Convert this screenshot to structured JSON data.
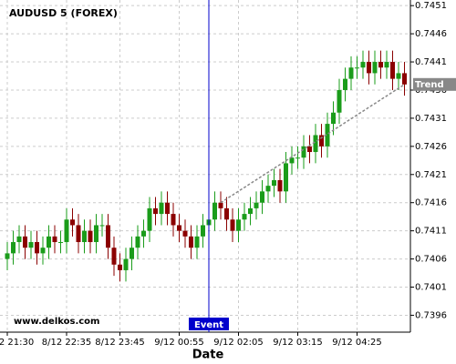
{
  "chart_data": {
    "type": "candlestick",
    "title": "AUDUSD 5 (FOREX)",
    "watermark": "www.delkos.com",
    "x_label": "Date",
    "categories": [
      "2 21:30",
      null,
      null,
      null,
      null,
      null,
      null,
      null,
      null,
      null,
      "8/12 22:35",
      null,
      null,
      null,
      null,
      null,
      null,
      null,
      null,
      "8/12 23:45",
      null,
      null,
      null,
      null,
      null,
      null,
      null,
      null,
      null,
      "9/12 00:55",
      null,
      null,
      null,
      null,
      null,
      null,
      null,
      null,
      null,
      "9/12 02:05",
      null,
      null,
      null,
      null,
      null,
      null,
      null,
      null,
      null,
      "9/12 03:15",
      null,
      null,
      null,
      null,
      null,
      null,
      null,
      null,
      null,
      "9/12 04:25",
      null,
      null,
      null,
      null,
      null,
      null,
      null,
      null
    ],
    "open": [
      0.7406,
      0.7407,
      0.7409,
      0.741,
      0.7408,
      0.7409,
      0.7407,
      0.7408,
      0.741,
      0.7409,
      0.7409,
      0.7413,
      0.7412,
      0.7409,
      0.7411,
      0.7409,
      0.7412,
      0.7412,
      0.7408,
      0.7405,
      0.7404,
      0.7406,
      0.7408,
      0.741,
      0.7411,
      0.7415,
      0.7414,
      0.7416,
      0.7414,
      0.7412,
      0.7411,
      0.741,
      0.7408,
      0.741,
      0.7412,
      0.7413,
      0.7416,
      0.7415,
      0.7413,
      0.7411,
      0.7413,
      0.7414,
      0.7415,
      0.7416,
      0.7418,
      0.7419,
      0.742,
      0.7418,
      0.7423,
      0.7424,
      0.7424,
      0.7426,
      0.7425,
      0.7428,
      0.7426,
      0.743,
      0.7432,
      0.7436,
      0.7438,
      0.744,
      0.744,
      0.7441,
      0.7439,
      0.7441,
      0.744,
      0.7441,
      0.7438,
      0.7439
    ],
    "high": [
      0.7409,
      0.7411,
      0.7412,
      0.7412,
      0.7411,
      0.7411,
      0.741,
      0.7412,
      0.7412,
      0.7411,
      0.7415,
      0.7415,
      0.7414,
      0.7413,
      0.7413,
      0.7414,
      0.7414,
      0.7414,
      0.741,
      0.7407,
      0.7408,
      0.741,
      0.7412,
      0.7413,
      0.7417,
      0.7417,
      0.7418,
      0.7418,
      0.7416,
      0.7414,
      0.7413,
      0.7412,
      0.7412,
      0.7414,
      0.7415,
      0.7418,
      0.7418,
      0.7417,
      0.7415,
      0.7415,
      0.7416,
      0.7417,
      0.7418,
      0.742,
      0.7421,
      0.7422,
      0.7422,
      0.7425,
      0.7426,
      0.7426,
      0.7428,
      0.7428,
      0.743,
      0.743,
      0.7432,
      0.7434,
      0.7438,
      0.744,
      0.7442,
      0.7442,
      0.7443,
      0.7443,
      0.7443,
      0.7443,
      0.7443,
      0.7443,
      0.7441,
      0.7441
    ],
    "low": [
      0.7404,
      0.7405,
      0.7407,
      0.7406,
      0.7406,
      0.7405,
      0.7405,
      0.7406,
      0.7407,
      0.7407,
      0.7407,
      0.741,
      0.7407,
      0.7407,
      0.7407,
      0.7407,
      0.741,
      0.7406,
      0.7403,
      0.7402,
      0.7402,
      0.7404,
      0.7406,
      0.7408,
      0.7409,
      0.7412,
      0.7412,
      0.7412,
      0.741,
      0.7409,
      0.7408,
      0.7406,
      0.7406,
      0.7408,
      0.741,
      0.7411,
      0.7413,
      0.7411,
      0.7409,
      0.7409,
      0.7411,
      0.7412,
      0.7413,
      0.7414,
      0.7416,
      0.7417,
      0.7416,
      0.7416,
      0.7421,
      0.7422,
      0.7422,
      0.7423,
      0.7423,
      0.7424,
      0.7424,
      0.7428,
      0.743,
      0.7434,
      0.7436,
      0.7438,
      0.7438,
      0.7437,
      0.7437,
      0.7438,
      0.7438,
      0.7436,
      0.7436,
      0.7435
    ],
    "close": [
      0.7407,
      0.7409,
      0.741,
      0.7408,
      0.7409,
      0.7407,
      0.7408,
      0.741,
      0.7409,
      0.7409,
      0.7413,
      0.7412,
      0.7409,
      0.7411,
      0.7409,
      0.7412,
      0.7412,
      0.7408,
      0.7405,
      0.7404,
      0.7406,
      0.7408,
      0.741,
      0.7411,
      0.7415,
      0.7414,
      0.7416,
      0.7414,
      0.7412,
      0.7411,
      0.741,
      0.7408,
      0.741,
      0.7412,
      0.7413,
      0.7416,
      0.7415,
      0.7413,
      0.7411,
      0.7413,
      0.7414,
      0.7415,
      0.7416,
      0.7418,
      0.7419,
      0.742,
      0.7418,
      0.7423,
      0.7424,
      0.7424,
      0.7426,
      0.7425,
      0.7428,
      0.7426,
      0.743,
      0.7432,
      0.7436,
      0.7438,
      0.744,
      0.744,
      0.7441,
      0.7439,
      0.7441,
      0.744,
      0.7441,
      0.7438,
      0.7439,
      0.7437
    ],
    "up_color": "#1a9c1a",
    "down_color": "#8b0000",
    "ylim": [
      0.7393,
      0.7452
    ],
    "yticks": [
      0.7396,
      0.7401,
      0.7406,
      0.7411,
      0.7416,
      0.7421,
      0.7426,
      0.7431,
      0.7436,
      0.7441,
      0.7446,
      0.7451
    ],
    "grid": true,
    "event": {
      "label": "Event",
      "index": 34,
      "color": "#0000cc"
    },
    "trend": {
      "label": "Trend",
      "start": [
        36,
        0.7416
      ],
      "end": [
        67,
        0.7437
      ],
      "color": "#888888"
    }
  }
}
